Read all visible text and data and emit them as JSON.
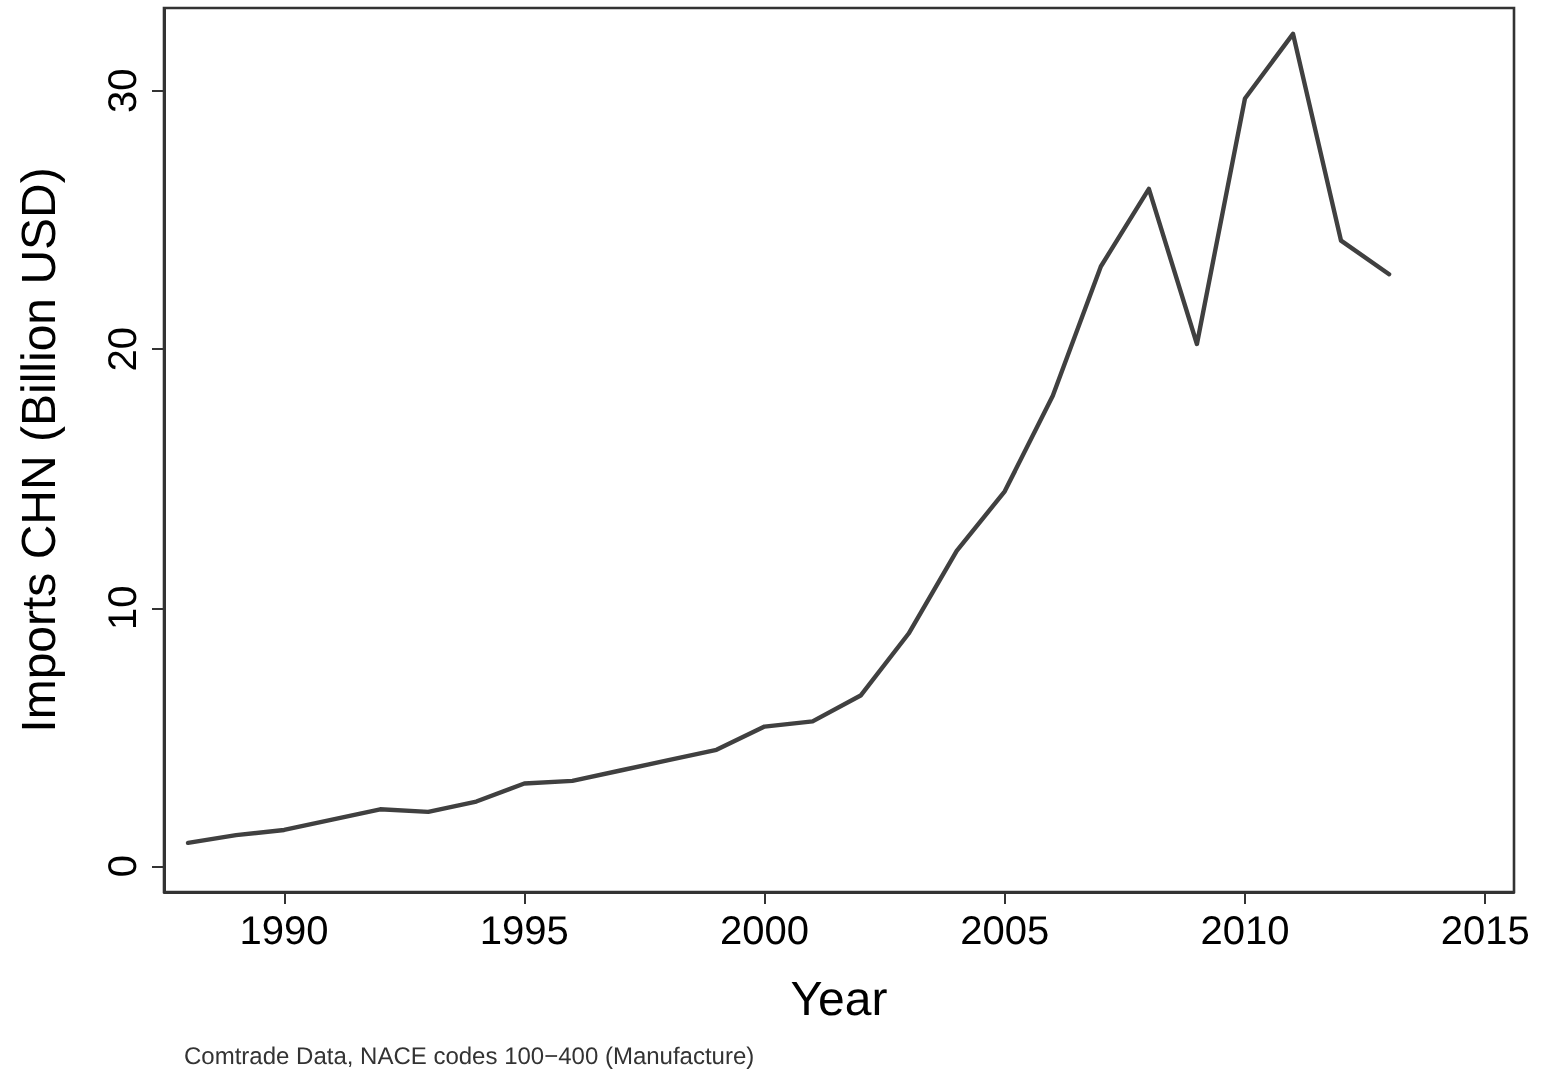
{
  "chart_data": {
    "type": "line",
    "xlabel": "Year",
    "ylabel": "Imports CHN (Billion USD)",
    "annotations": [
      "Comtrade Data, NACE codes 100−400 (Manufacture)"
    ],
    "x": [
      1988,
      1989,
      1990,
      1991,
      1992,
      1993,
      1994,
      1995,
      1996,
      1997,
      1998,
      1999,
      2000,
      2001,
      2002,
      2003,
      2004,
      2005,
      2006,
      2007,
      2008,
      2009,
      2010,
      2011,
      2012,
      2013
    ],
    "series": [
      {
        "color": "#404040",
        "values": [
          0.9,
          1.2,
          1.4,
          1.8,
          2.2,
          2.1,
          2.5,
          3.2,
          3.3,
          3.7,
          4.1,
          4.5,
          5.4,
          5.6,
          6.6,
          9.0,
          12.2,
          14.5,
          18.2,
          23.2,
          26.2,
          20.2,
          29.7,
          32.2,
          24.2,
          22.9
        ]
      }
    ],
    "xlim": [
      1987.5,
      2015.6
    ],
    "xticks": [
      1990,
      1995,
      2000,
      2005,
      2010,
      2015
    ],
    "ylim": [
      -1,
      33.2
    ],
    "yticks": [
      0,
      10,
      20,
      30
    ],
    "marker": "none",
    "line_style": "solid"
  }
}
